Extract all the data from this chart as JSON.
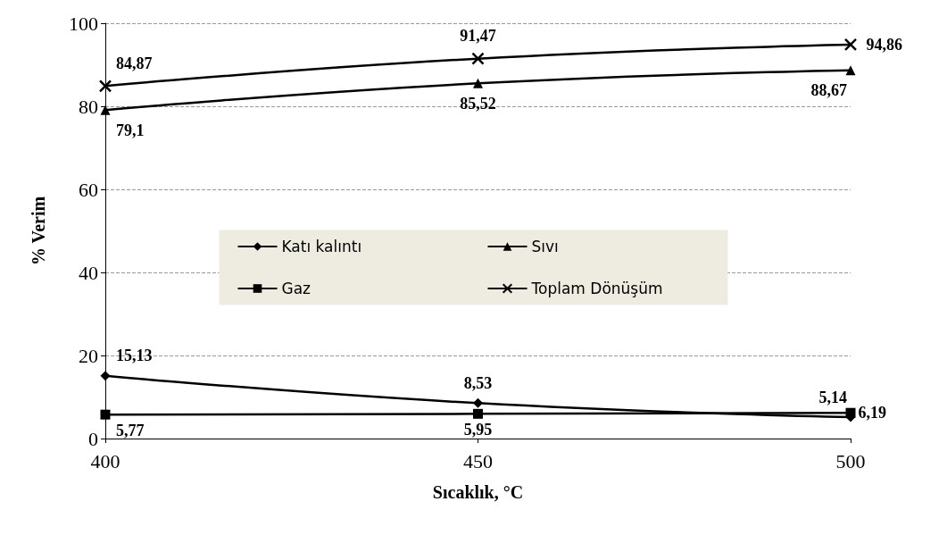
{
  "chart_data": {
    "type": "line",
    "xlabel": "Sıcaklık, °C",
    "ylabel": "% Verim",
    "x": [
      400,
      450,
      500
    ],
    "xlim": [
      400,
      500
    ],
    "xticks": [
      400,
      450,
      500
    ],
    "ylim": [
      0,
      100
    ],
    "yticks": [
      0,
      20,
      40,
      60,
      80,
      100
    ],
    "grid": "y",
    "legend": "center",
    "series": [
      {
        "name": "Katı kalıntı",
        "color": "#000000",
        "marker": "diamond",
        "values": [
          15.13,
          8.53,
          5.14
        ],
        "value_labels": [
          "15,13",
          "8,53",
          "5,14"
        ]
      },
      {
        "name": "Sıvı",
        "color": "#000000",
        "marker": "triangle",
        "values": [
          79.1,
          85.52,
          88.67
        ],
        "value_labels": [
          "79,1",
          "85,52",
          "88,67"
        ]
      },
      {
        "name": "Gaz",
        "color": "#000000",
        "marker": "square",
        "values": [
          5.77,
          5.95,
          6.19
        ],
        "value_labels": [
          "5,77",
          "5,95",
          "6,19"
        ]
      },
      {
        "name": "Toplam Dönüşüm",
        "color": "#000000",
        "marker": "cross",
        "values": [
          84.87,
          91.47,
          94.86
        ],
        "value_labels": [
          "84,87",
          "91,47",
          "94,86"
        ]
      }
    ]
  }
}
